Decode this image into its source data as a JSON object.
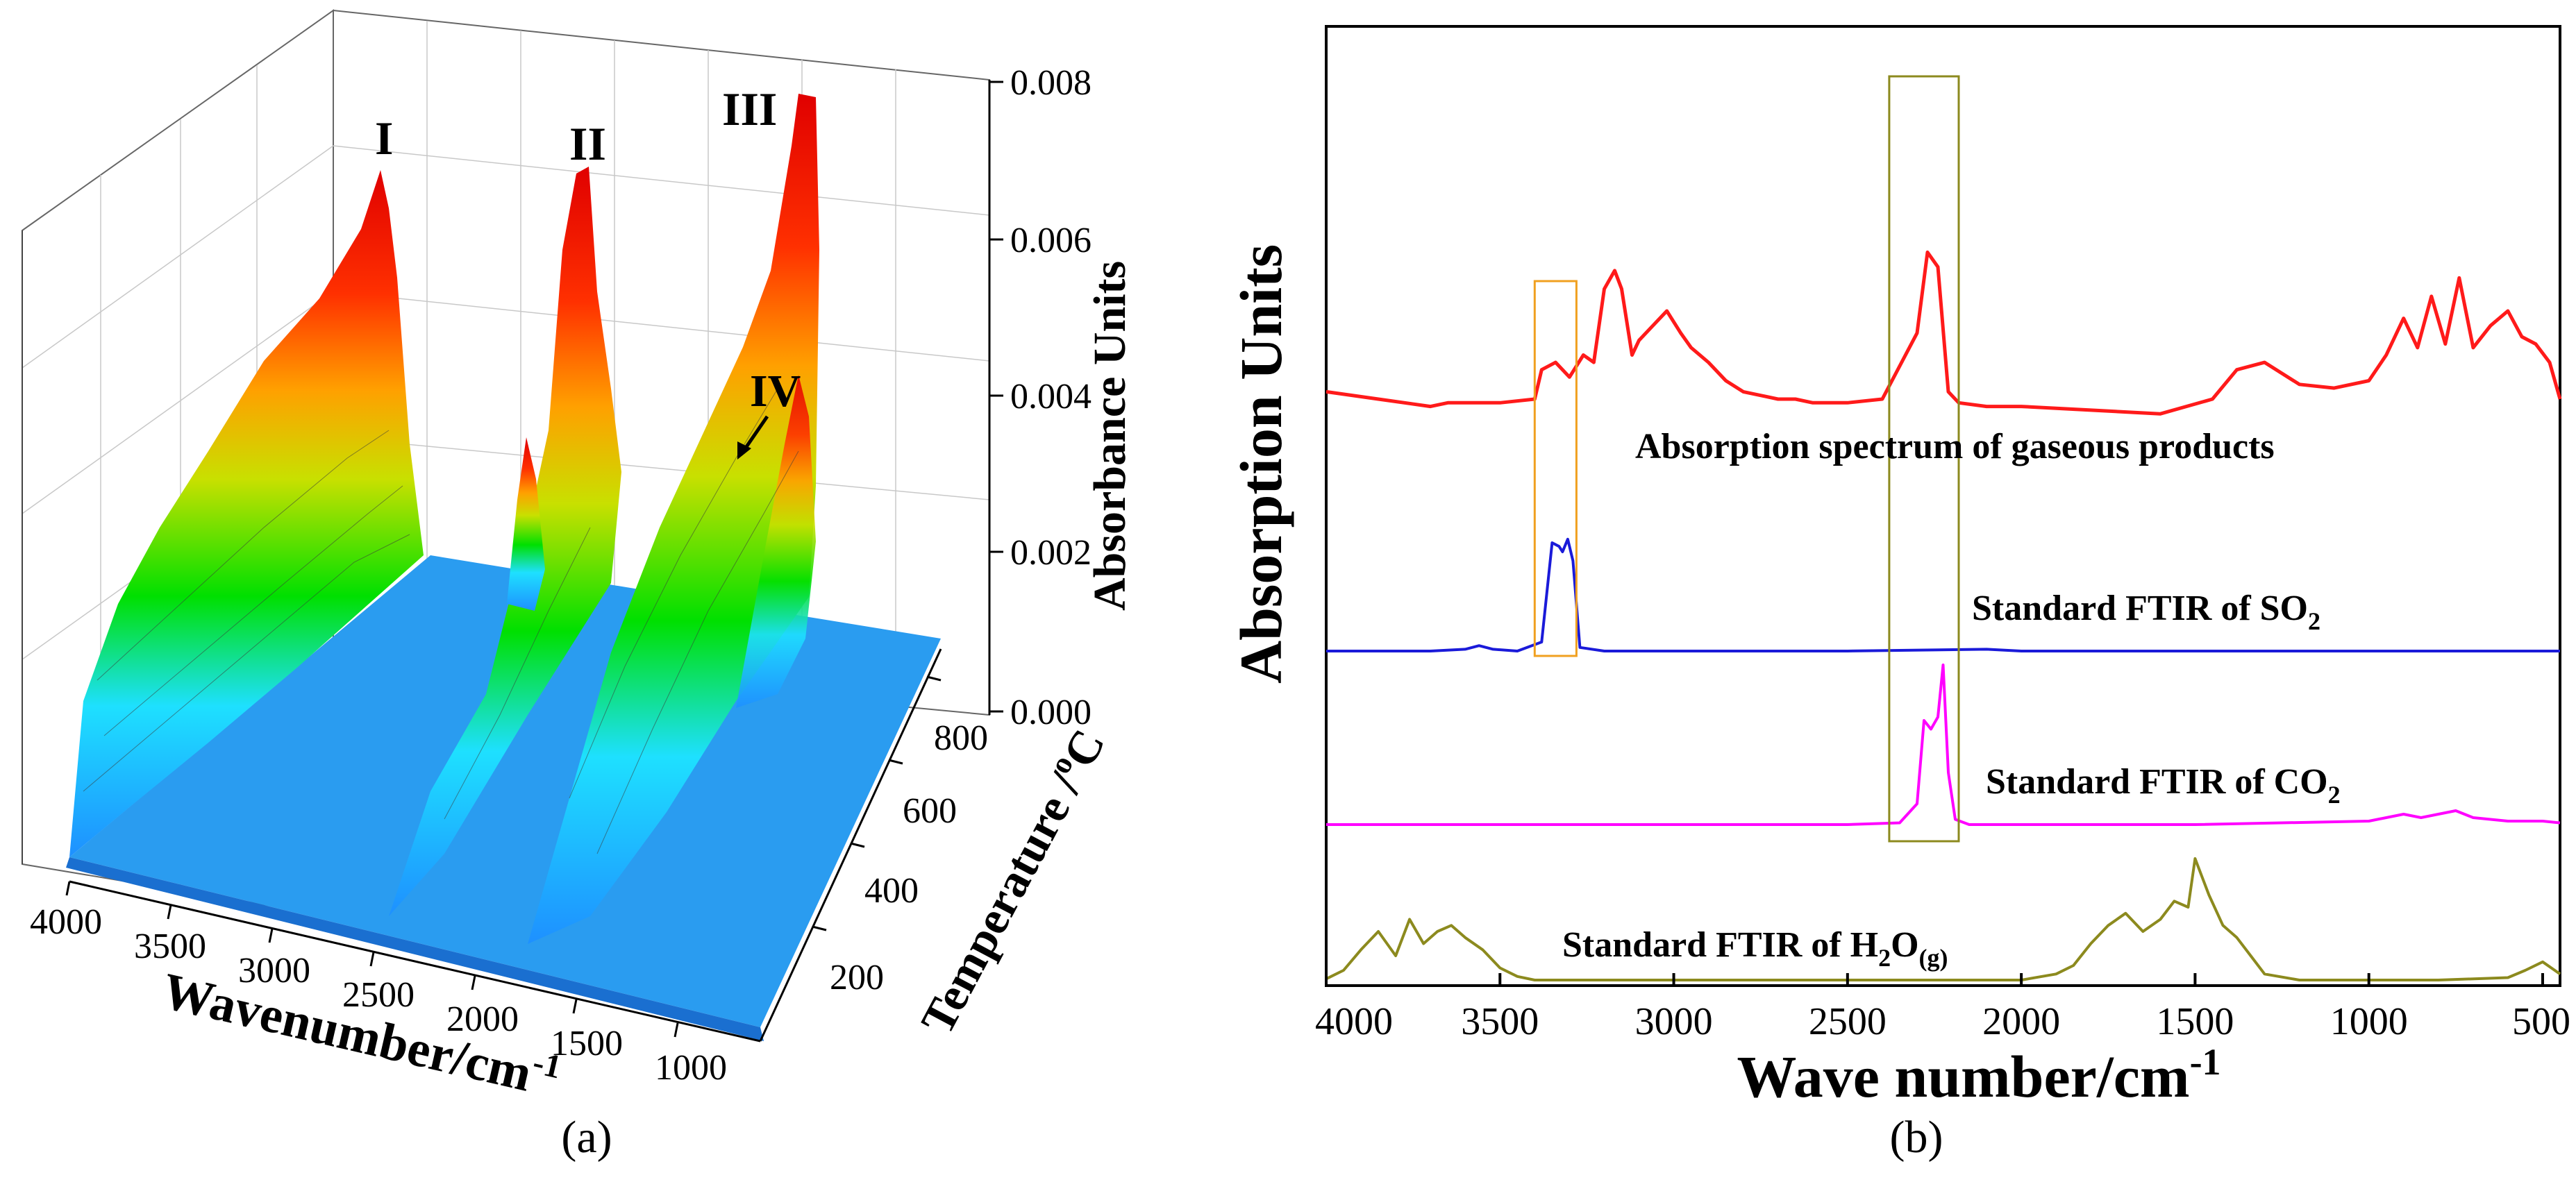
{
  "panel_a": {
    "caption": "(a)",
    "x_axis_title": "Wavenumber/cm",
    "x_axis_title_sup": "-1",
    "y_axis_title": "Temperature /",
    "y_axis_title_sup": "o",
    "y_axis_title_unit": "C",
    "z_axis_title": "Absorbance Units",
    "peak_labels": [
      "I",
      "II",
      "III",
      "IV"
    ]
  },
  "panel_b": {
    "caption": "(b)",
    "x_axis_title": "Wave number/cm",
    "x_axis_title_sup": "-1",
    "y_axis_title": "Absorption Units",
    "label_gaseous": "Absorption spectrum of gaseous products",
    "label_so2": "Standard FTIR of SO",
    "label_so2_sub": "2",
    "label_co2": "Standard FTIR of CO",
    "label_co2_sub": "2",
    "label_h2o_a": "Standard FTIR of H",
    "label_h2o_sub": "2",
    "label_h2o_b": "O",
    "label_h2o_sub2": "(g)"
  },
  "colors": {
    "gaseous": "#ff1a1a",
    "so2": "#1a1ad9",
    "co2": "#ff00ff",
    "h2o": "#8c8a1e",
    "so2_box": "#f0a020",
    "co2_box": "#8c8a1e"
  },
  "chart_data": [
    {
      "type": "area",
      "panel": "a",
      "description_3d": "3D surface of FTIR absorbance versus wavenumber and temperature",
      "x_axis": {
        "title": "Wavenumber/cm-1",
        "ticks": [
          4000,
          3500,
          3000,
          2500,
          2000,
          1500,
          1000
        ],
        "range": [
          4000,
          700
        ]
      },
      "y_axis": {
        "title": "Temperature /oC",
        "ticks": [
          200,
          400,
          600,
          800
        ],
        "range": [
          30,
          900
        ]
      },
      "z_axis": {
        "title": "Absorbance Units",
        "ticks": [
          "0.000",
          "0.002",
          "0.004",
          "0.006",
          "0.008"
        ],
        "range": [
          0,
          0.008
        ]
      },
      "series": [
        {
          "name": "I",
          "peak_x": 2350,
          "peak_z": 0.0066
        },
        {
          "name": "II",
          "peak_x": 1750,
          "peak_z": 0.0068
        },
        {
          "name": "III",
          "peak_x": 1050,
          "peak_z": 0.0077
        },
        {
          "name": "IV",
          "peak_x": 1150,
          "peak_z": 0.0035
        }
      ]
    },
    {
      "type": "line",
      "panel": "b",
      "x_axis": {
        "title": "Wave number/cm-1",
        "ticks": [
          4000,
          3500,
          3000,
          2500,
          2000,
          1500,
          1000,
          500
        ],
        "range": [
          4000,
          450
        ]
      },
      "y_axis": {
        "title": "Absorption Units",
        "ticks": []
      },
      "series": [
        {
          "name": "Absorption spectrum of gaseous products",
          "x": [
            4000,
            3850,
            3700,
            3650,
            3500,
            3400,
            3380,
            3340,
            3300,
            3260,
            3230,
            3200,
            3170,
            3150,
            3120,
            3100,
            3060,
            3020,
            2980,
            2950,
            2900,
            2850,
            2800,
            2750,
            2700,
            2650,
            2600,
            2500,
            2400,
            2300,
            2270,
            2240,
            2210,
            2180,
            2100,
            2000,
            1800,
            1600,
            1450,
            1380,
            1300,
            1200,
            1100,
            1000,
            950,
            900,
            860,
            820,
            780,
            740,
            700,
            650,
            600,
            560,
            520,
            480,
            450
          ],
          "y": [
            0.62,
            0.6,
            0.58,
            0.59,
            0.59,
            0.6,
            0.68,
            0.7,
            0.66,
            0.72,
            0.7,
            0.9,
            0.95,
            0.9,
            0.72,
            0.76,
            0.8,
            0.84,
            0.78,
            0.74,
            0.7,
            0.65,
            0.62,
            0.61,
            0.6,
            0.6,
            0.59,
            0.59,
            0.6,
            0.78,
            1.0,
            0.96,
            0.62,
            0.59,
            0.58,
            0.58,
            0.57,
            0.56,
            0.6,
            0.68,
            0.7,
            0.64,
            0.63,
            0.65,
            0.72,
            0.82,
            0.74,
            0.88,
            0.75,
            0.93,
            0.74,
            0.8,
            0.84,
            0.77,
            0.75,
            0.7,
            0.6
          ]
        },
        {
          "name": "Standard FTIR of SO2",
          "x": [
            4000,
            3700,
            3600,
            3560,
            3520,
            3450,
            3380,
            3350,
            3330,
            3320,
            3305,
            3290,
            3270,
            3200,
            3000,
            2500,
            2100,
            2000,
            1500,
            1000,
            500,
            450
          ],
          "y": [
            0.0,
            0.0,
            0.01,
            0.03,
            0.01,
            0.0,
            0.05,
            0.6,
            0.58,
            0.55,
            0.62,
            0.5,
            0.02,
            0.0,
            0.0,
            0.0,
            0.01,
            0.0,
            0.0,
            0.0,
            0.0,
            0.0
          ]
        },
        {
          "name": "Standard FTIR of CO2",
          "x": [
            4000,
            3000,
            2500,
            2350,
            2300,
            2280,
            2260,
            2240,
            2225,
            2210,
            2190,
            2150,
            2000,
            1500,
            1000,
            900,
            850,
            800,
            750,
            700,
            600,
            500,
            450
          ],
          "y": [
            0.0,
            0.0,
            0.0,
            0.01,
            0.12,
            0.6,
            0.55,
            0.62,
            0.92,
            0.3,
            0.03,
            0.0,
            0.0,
            0.0,
            0.02,
            0.06,
            0.04,
            0.06,
            0.08,
            0.04,
            0.02,
            0.02,
            0.01
          ]
        },
        {
          "name": "Standard FTIR of H2O(g)",
          "x": [
            4000,
            3950,
            3900,
            3850,
            3800,
            3760,
            3720,
            3680,
            3640,
            3600,
            3550,
            3500,
            3450,
            3400,
            3000,
            2500,
            2000,
            1900,
            1850,
            1800,
            1750,
            1700,
            1650,
            1600,
            1560,
            1520,
            1500,
            1460,
            1420,
            1380,
            1340,
            1300,
            1200,
            1000,
            800,
            600,
            550,
            500,
            450
          ],
          "y": [
            0.01,
            0.08,
            0.25,
            0.4,
            0.2,
            0.5,
            0.3,
            0.4,
            0.45,
            0.35,
            0.25,
            0.1,
            0.03,
            0.0,
            0.0,
            0.0,
            0.0,
            0.05,
            0.12,
            0.3,
            0.45,
            0.55,
            0.4,
            0.5,
            0.65,
            0.6,
            1.0,
            0.7,
            0.45,
            0.35,
            0.2,
            0.05,
            0.0,
            0.0,
            0.0,
            0.02,
            0.08,
            0.15,
            0.05
          ]
        }
      ],
      "highlight_boxes": [
        {
          "x_range": [
            3400,
            3280
          ],
          "covers": [
            "Absorption spectrum of gaseous products",
            "Standard FTIR of SO2"
          ]
        },
        {
          "x_range": [
            2380,
            2180
          ],
          "covers": [
            "Absorption spectrum of gaseous products",
            "Standard FTIR of CO2"
          ]
        }
      ]
    }
  ]
}
